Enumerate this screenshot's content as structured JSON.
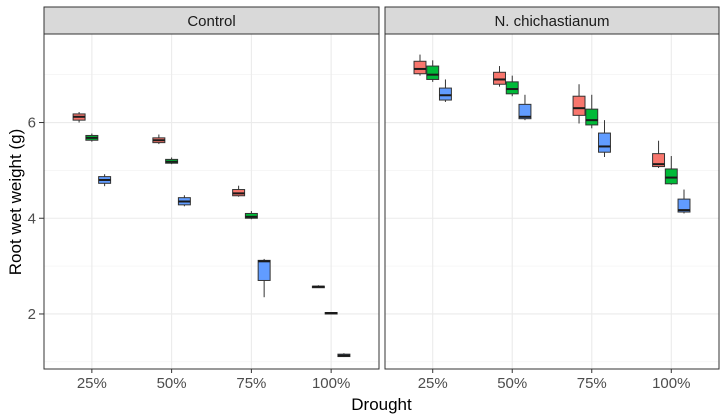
{
  "chart_data": {
    "type": "box",
    "xlabel": "Drought",
    "ylabel": "Root wet weight (g)",
    "ylim": [
      0.85,
      7.85
    ],
    "yticks": [
      2,
      4,
      6
    ],
    "categories": [
      "25%",
      "50%",
      "75%",
      "100%"
    ],
    "grid": true,
    "legend": "none",
    "group_colors": [
      "#F8766D",
      "#00BA38",
      "#619CFF"
    ],
    "panels": [
      {
        "title": "Control",
        "groups": [
          {
            "color": "#F8766D",
            "boxes": [
              {
                "category": "25%",
                "min": 6.0,
                "q1": 6.05,
                "median": 6.12,
                "q3": 6.18,
                "max": 6.22
              },
              {
                "category": "50%",
                "min": 5.55,
                "q1": 5.58,
                "median": 5.63,
                "q3": 5.68,
                "max": 5.75
              },
              {
                "category": "75%",
                "min": 4.45,
                "q1": 4.47,
                "median": 4.52,
                "q3": 4.6,
                "max": 4.68
              },
              {
                "category": "100%",
                "min": 2.55,
                "q1": 2.56,
                "median": 2.57,
                "q3": 2.58,
                "max": 2.6
              }
            ]
          },
          {
            "color": "#00BA38",
            "boxes": [
              {
                "category": "25%",
                "min": 5.6,
                "q1": 5.63,
                "median": 5.68,
                "q3": 5.73,
                "max": 5.77
              },
              {
                "category": "50%",
                "min": 5.13,
                "q1": 5.15,
                "median": 5.18,
                "q3": 5.23,
                "max": 5.27
              },
              {
                "category": "75%",
                "min": 3.98,
                "q1": 4.0,
                "median": 4.03,
                "q3": 4.1,
                "max": 4.15
              },
              {
                "category": "100%",
                "min": 2.0,
                "q1": 2.01,
                "median": 2.02,
                "q3": 2.03,
                "max": 2.04
              }
            ]
          },
          {
            "color": "#619CFF",
            "boxes": [
              {
                "category": "25%",
                "min": 4.67,
                "q1": 4.73,
                "median": 4.8,
                "q3": 4.87,
                "max": 4.92
              },
              {
                "category": "50%",
                "min": 4.25,
                "q1": 4.28,
                "median": 4.35,
                "q3": 4.43,
                "max": 4.48
              },
              {
                "category": "75%",
                "min": 2.35,
                "q1": 2.7,
                "median": 3.1,
                "q3": 3.12,
                "max": 3.15
              },
              {
                "category": "100%",
                "min": 1.1,
                "q1": 1.11,
                "median": 1.13,
                "q3": 1.16,
                "max": 1.18
              }
            ]
          }
        ]
      },
      {
        "title": "N. chichastianum",
        "groups": [
          {
            "color": "#F8766D",
            "boxes": [
              {
                "category": "25%",
                "min": 6.98,
                "q1": 7.02,
                "median": 7.12,
                "q3": 7.28,
                "max": 7.42
              },
              {
                "category": "50%",
                "min": 6.75,
                "q1": 6.8,
                "median": 6.9,
                "q3": 7.05,
                "max": 7.18
              },
              {
                "category": "75%",
                "min": 5.98,
                "q1": 6.15,
                "median": 6.3,
                "q3": 6.55,
                "max": 6.8
              },
              {
                "category": "100%",
                "min": 5.05,
                "q1": 5.08,
                "median": 5.13,
                "q3": 5.35,
                "max": 5.62
              }
            ]
          },
          {
            "color": "#00BA38",
            "boxes": [
              {
                "category": "25%",
                "min": 6.85,
                "q1": 6.9,
                "median": 7.0,
                "q3": 7.18,
                "max": 7.3
              },
              {
                "category": "50%",
                "min": 6.55,
                "q1": 6.6,
                "median": 6.7,
                "q3": 6.85,
                "max": 6.98
              },
              {
                "category": "75%",
                "min": 5.88,
                "q1": 5.95,
                "median": 6.05,
                "q3": 6.28,
                "max": 6.58
              },
              {
                "category": "100%",
                "min": 4.7,
                "q1": 4.72,
                "median": 4.85,
                "q3": 5.03,
                "max": 5.3
              }
            ]
          },
          {
            "color": "#619CFF",
            "boxes": [
              {
                "category": "25%",
                "min": 6.43,
                "q1": 6.47,
                "median": 6.57,
                "q3": 6.72,
                "max": 6.9
              },
              {
                "category": "50%",
                "min": 6.05,
                "q1": 6.08,
                "median": 6.12,
                "q3": 6.38,
                "max": 6.58
              },
              {
                "category": "75%",
                "min": 5.28,
                "q1": 5.38,
                "median": 5.5,
                "q3": 5.78,
                "max": 6.05
              },
              {
                "category": "100%",
                "min": 4.1,
                "q1": 4.13,
                "median": 4.17,
                "q3": 4.4,
                "max": 4.6
              }
            ]
          }
        ]
      }
    ]
  }
}
